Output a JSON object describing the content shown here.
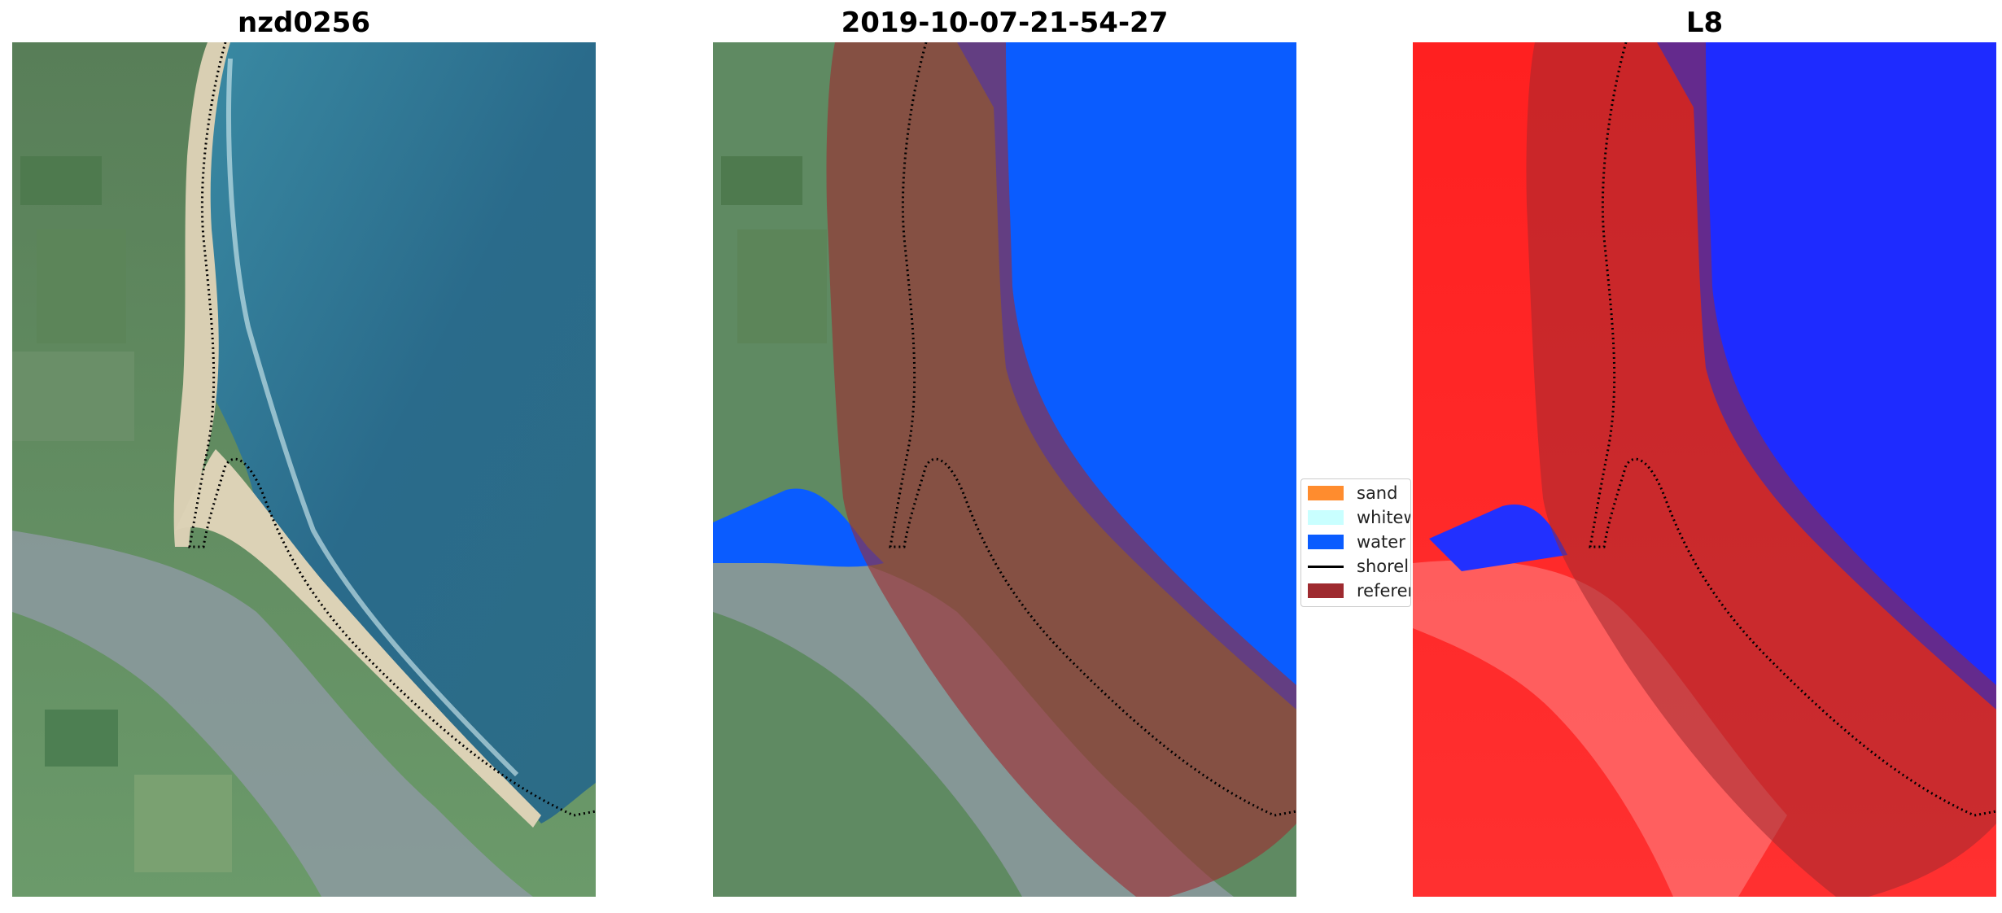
{
  "panels": [
    {
      "title": "nzd0256",
      "kind": "rgb"
    },
    {
      "title": "2019-10-07-21-54-27",
      "kind": "classification"
    },
    {
      "title": "L8",
      "kind": "index"
    }
  ],
  "legend": {
    "items": [
      {
        "label": "sand",
        "color": "#ff8c2e",
        "type": "patch"
      },
      {
        "label": "whitewater",
        "color": "#c9ffff",
        "type": "patch"
      },
      {
        "label": "water",
        "color": "#0a5cff",
        "type": "patch"
      },
      {
        "label": "shoreline",
        "color": "#000000",
        "type": "line"
      },
      {
        "label": "reference shoreline buffer",
        "color": "#9e2a2f",
        "type": "patch"
      }
    ]
  },
  "colors": {
    "land": "#5f8a62",
    "sea": "#2d6f8c",
    "sand": "#d8cdb5",
    "water_class": "#0a5cff",
    "buffer": "#9e2a2f",
    "index_land": "#ff2a2a",
    "index_water": "#1e2bff"
  }
}
